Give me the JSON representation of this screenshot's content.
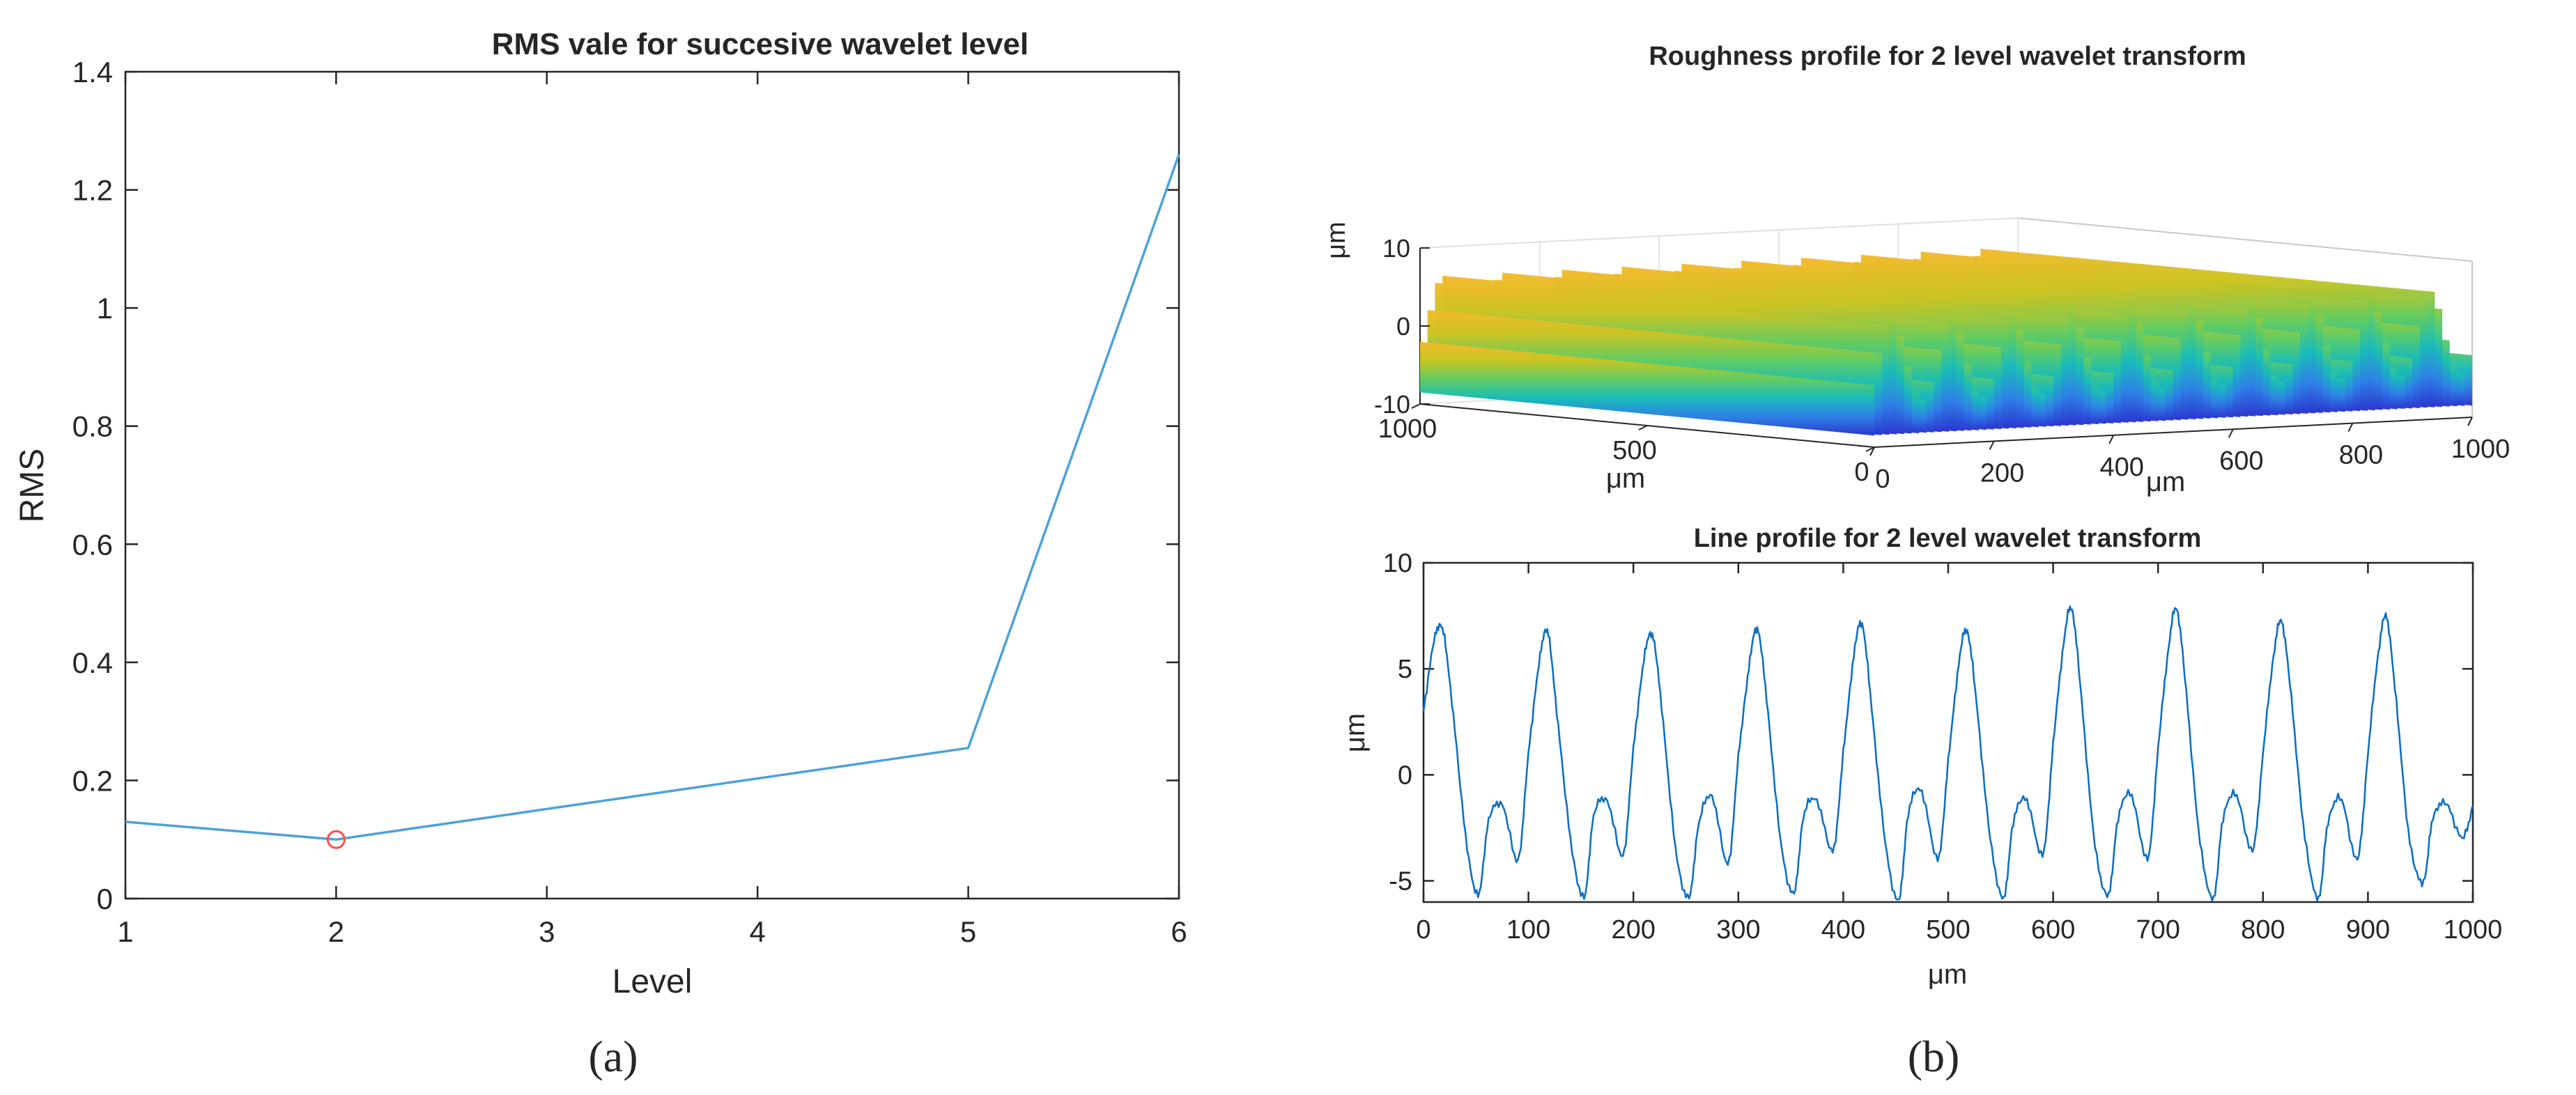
{
  "chart_data": [
    {
      "id": "a",
      "type": "line",
      "panel_label": "(a)",
      "title": "RMS vale for succesive wavelet level",
      "xlabel": "Level",
      "ylabel": "RMS",
      "xlim": [
        1,
        6
      ],
      "ylim": [
        0,
        1.4
      ],
      "x_ticks": [
        "1",
        "2",
        "3",
        "4",
        "5",
        "6"
      ],
      "y_ticks": [
        "0",
        "0.2",
        "0.4",
        "0.6",
        "0.8",
        "1",
        "1.2",
        "1.4"
      ],
      "series": [
        {
          "name": "RMS",
          "color": "#4da2d9",
          "x": [
            1,
            2,
            5,
            6
          ],
          "y": [
            0.13,
            0.1,
            0.255,
            1.26
          ]
        }
      ],
      "marker": {
        "x": 2,
        "y": 0.1,
        "shape": "circle",
        "color": "#ff4b4b"
      }
    },
    {
      "id": "b-top",
      "type": "surface",
      "panel_label": "(b)",
      "title": "Roughness profile for 2 level wavelet transform",
      "zlabel": "μm",
      "xlabel": "μm",
      "ylabel": "μm",
      "z_ticks": [
        "10",
        "0",
        "-10"
      ],
      "x_ticks": [
        "0",
        "200",
        "400",
        "600",
        "800",
        "1000"
      ],
      "y_ticks": [
        "0",
        "500",
        "1000"
      ],
      "xlim": [
        0,
        1000
      ],
      "ylim": [
        0,
        1000
      ],
      "zlim": [
        -10,
        10
      ],
      "profile": {
        "period": 100,
        "amplitude": 6,
        "offset": 1
      },
      "colormap": [
        "#2c36d0",
        "#2e82e6",
        "#19bcb8",
        "#62cc62",
        "#c8c424",
        "#f5ba2d"
      ]
    },
    {
      "id": "b-bottom",
      "type": "line",
      "title": "Line profile for 2 level wavelet transform",
      "xlabel": "μm",
      "ylabel": "μm",
      "xlim": [
        0,
        1000
      ],
      "ylim": [
        -6,
        10
      ],
      "x_ticks": [
        "0",
        "100",
        "200",
        "300",
        "400",
        "500",
        "600",
        "700",
        "800",
        "900",
        "1000"
      ],
      "y_ticks": [
        "-5",
        "0",
        "5",
        "10"
      ],
      "series": [
        {
          "name": "profile",
          "color": "#0f6fc2",
          "x": [
            0,
            10,
            18,
            27,
            40,
            52,
            62,
            75,
            90,
            100,
            110,
            118,
            127,
            140,
            153,
            162,
            175,
            190,
            200,
            210,
            218,
            227,
            240,
            253,
            262,
            275,
            290,
            300,
            310,
            318,
            327,
            340,
            353,
            362,
            375,
            390,
            400,
            410,
            418,
            427,
            440,
            453,
            462,
            475,
            490,
            500,
            510,
            518,
            527,
            540,
            553,
            562,
            575,
            590,
            600,
            610,
            618,
            627,
            640,
            653,
            662,
            675,
            690,
            700,
            710,
            718,
            727,
            740,
            753,
            762,
            775,
            790,
            800,
            810,
            818,
            827,
            840,
            853,
            862,
            875,
            890,
            900,
            910,
            918,
            927,
            940,
            953,
            962,
            975,
            990,
            1000
          ],
          "y": [
            3,
            6.3,
            6.9,
            3.5,
            -2.8,
            -5.7,
            -2.2,
            -1.4,
            -4,
            1,
            5.2,
            6.8,
            3,
            -3,
            -5.8,
            -2,
            -1.2,
            -3.8,
            1.2,
            5.4,
            6.6,
            3.2,
            -3.4,
            -5.8,
            -2.4,
            -1,
            -4.2,
            0.8,
            5,
            6.9,
            3.6,
            -3,
            -5.6,
            -2,
            -1.2,
            -3.6,
            1,
            5.6,
            7.1,
            3.2,
            -3.2,
            -5.9,
            -1.8,
            -0.8,
            -4,
            0.6,
            5.2,
            6.8,
            3.4,
            -3,
            -5.8,
            -2.2,
            -1.2,
            -3.8,
            1.4,
            6.2,
            7.8,
            3.6,
            -3.4,
            -5.6,
            -2,
            -1,
            -4,
            1.2,
            6,
            7.8,
            3.8,
            -3.2,
            -5.8,
            -2,
            -1,
            -3.6,
            1,
            5.6,
            7.2,
            3.6,
            -3,
            -5.8,
            -2.2,
            -1.2,
            -4,
            1,
            5.8,
            7.4,
            3.4,
            -3.2,
            -5,
            -2,
            -1.4,
            -3,
            -1.4
          ]
        }
      ]
    }
  ]
}
